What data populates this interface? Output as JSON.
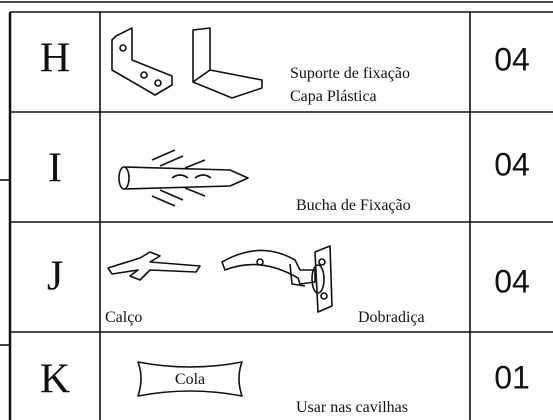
{
  "table": {
    "rows": [
      {
        "letter": "H",
        "labels": [
          "Suporte de fixação",
          "Capa Plástica"
        ],
        "quantity": "04"
      },
      {
        "letter": "I",
        "labels": [
          "Bucha de Fixação"
        ],
        "quantity": "04"
      },
      {
        "letter": "J",
        "labels": [
          "Calço",
          "Dobradiça"
        ],
        "quantity": "04"
      },
      {
        "letter": "K",
        "tag": "Cola",
        "labels": [
          "Usar nas cavilhas"
        ],
        "quantity": "01"
      }
    ]
  }
}
